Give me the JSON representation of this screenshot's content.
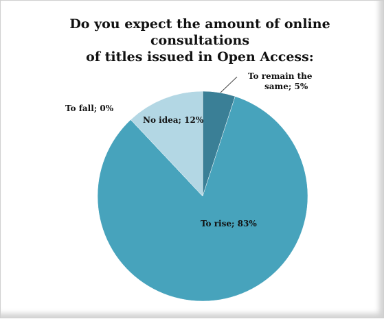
{
  "chart_data": {
    "type": "pie",
    "title_lines": [
      "Do you expect the amount of online consultations",
      "of titles issued in Open Access:"
    ],
    "slices": [
      {
        "label": "To remain the same",
        "label_lines": [
          "To remain the",
          "same; 5%"
        ],
        "value": 5,
        "color": "#3a7f96"
      },
      {
        "label": "To rise",
        "label_lines": [
          "To rise; 83%"
        ],
        "value": 83,
        "color": "#47a3bc"
      },
      {
        "label": "To fall",
        "label_lines": [
          "To fall; 0%"
        ],
        "value": 0,
        "color": "#6fa0b5"
      },
      {
        "label": "No idea",
        "label_lines": [
          "No idea; 12%"
        ],
        "value": 12,
        "color": "#b3d7e4"
      }
    ]
  }
}
